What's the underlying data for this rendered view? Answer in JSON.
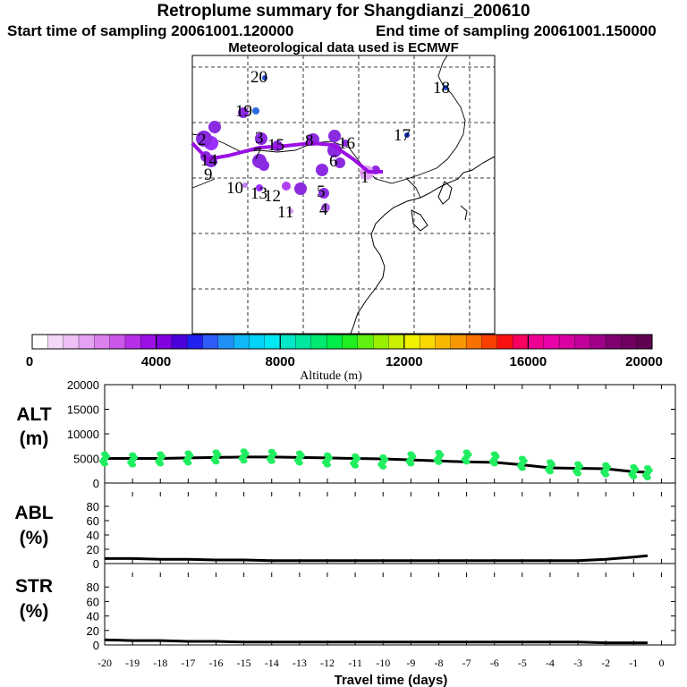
{
  "header": {
    "title": "Retroplume summary for Shangdianzi_200610",
    "start_label": "Start time of sampling 20061001.120000",
    "end_label": "End time of sampling 20061001.150000",
    "met_label": "Meteorological data used is ECMWF"
  },
  "map": {
    "point_labels": [
      {
        "text": "20",
        "color": "#1f4fd8"
      },
      {
        "text": "18",
        "color": "#1f4fd8"
      },
      {
        "text": "19",
        "color": "#2a6ae0"
      },
      {
        "text": "17",
        "color": "#1030c0"
      },
      {
        "text": "16",
        "color": "#8a2be2"
      },
      {
        "text": "15",
        "color": "#8a2be2"
      },
      {
        "text": "14",
        "color": "#8a2be2"
      },
      {
        "text": "9",
        "color": "#9b30ff"
      },
      {
        "text": "10",
        "color": "#c080f0"
      },
      {
        "text": "13",
        "color": "#9b30ff"
      },
      {
        "text": "12",
        "color": "#b040f0"
      },
      {
        "text": "11",
        "color": "#d090f0"
      },
      {
        "text": "8",
        "color": "#8a2be2"
      },
      {
        "text": "7",
        "color": "#8a2be2"
      },
      {
        "text": "6",
        "color": "#8a2be2"
      },
      {
        "text": "5",
        "color": "#8a2be2"
      },
      {
        "text": "4",
        "color": "#b060f0"
      },
      {
        "text": "3",
        "color": "#8a2be2"
      },
      {
        "text": "2",
        "color": "#8a2be2"
      },
      {
        "text": "1",
        "color": "#e0a0f0"
      }
    ]
  },
  "colorbar": {
    "xlabel": "Altitude (m)",
    "tick_labels": [
      "0",
      "4000",
      "8000",
      "12000",
      "16000",
      "20000"
    ],
    "colors": [
      "#ffffff",
      "#f4d8f8",
      "#eec0f6",
      "#e6a2f2",
      "#dc80ee",
      "#cc55ea",
      "#b62ee6",
      "#9a10e4",
      "#8000e0",
      "#4a00d8",
      "#2020f0",
      "#2e5cf8",
      "#2090f8",
      "#10b8f8",
      "#00d4f8",
      "#00e8f4",
      "#00e8c8",
      "#00e8a0",
      "#00ea70",
      "#00ec48",
      "#20ee20",
      "#60f010",
      "#98f000",
      "#c8f000",
      "#f0f000",
      "#f8d800",
      "#f8b800",
      "#f89800",
      "#f87000",
      "#f84000",
      "#f81010",
      "#f80060",
      "#f00090",
      "#e800a8",
      "#d800a0",
      "#c00098",
      "#a00088",
      "#800070",
      "#700060",
      "#600050"
    ]
  },
  "chart_data": [
    {
      "type": "line",
      "title": "ALT (m)",
      "ylabel": "ALT\n(m)",
      "ylim": [
        0,
        20000
      ],
      "yticks": [
        "0",
        "5000",
        "10000",
        "15000",
        "20000"
      ],
      "x": [
        -20,
        -19,
        -18,
        -17,
        -16,
        -15,
        -14,
        -13,
        -12,
        -11,
        -10,
        -9,
        -8,
        -7,
        -6,
        -5,
        -4,
        -3,
        -2,
        -1,
        -0.5
      ],
      "series": [
        {
          "name": "median altitude",
          "color": "#000000",
          "values": [
            5000,
            5000,
            5000,
            5100,
            5200,
            5300,
            5300,
            5200,
            5100,
            5000,
            4900,
            4700,
            4500,
            4300,
            4200,
            3700,
            3100,
            3000,
            2900,
            2300,
            2200
          ]
        },
        {
          "name": "particle altitudes",
          "color": "#20ee60",
          "values": [
            5200,
            5000,
            5200,
            5400,
            5600,
            5800,
            5700,
            5400,
            5000,
            4800,
            4600,
            5200,
            5500,
            5600,
            5200,
            4300,
            3600,
            3200,
            3000,
            2600,
            2400
          ]
        }
      ]
    },
    {
      "type": "line",
      "title": "ABL (%)",
      "ylabel": "ABL\n(%)",
      "ylim": [
        0,
        100
      ],
      "yticks": [
        "0",
        "20",
        "40",
        "60",
        "80"
      ],
      "x": [
        -20,
        -19,
        -18,
        -17,
        -16,
        -15,
        -14,
        -13,
        -12,
        -11,
        -10,
        -9,
        -8,
        -7,
        -6,
        -5,
        -4,
        -3,
        -2,
        -1,
        -0.5
      ],
      "series": [
        {
          "name": "ABL fraction",
          "color": "#000000",
          "values": [
            7,
            7,
            6,
            6,
            5,
            5,
            4,
            4,
            4,
            4,
            4,
            4,
            4,
            4,
            4,
            4,
            4,
            4,
            6,
            9,
            11
          ]
        }
      ]
    },
    {
      "type": "line",
      "title": "STR (%)",
      "ylabel": "STR\n(%)",
      "ylim": [
        0,
        100
      ],
      "yticks": [
        "0",
        "20",
        "40",
        "60",
        "80"
      ],
      "x": [
        -20,
        -19,
        -18,
        -17,
        -16,
        -15,
        -14,
        -13,
        -12,
        -11,
        -10,
        -9,
        -8,
        -7,
        -6,
        -5,
        -4,
        -3,
        -2,
        -1,
        -0.5
      ],
      "series": [
        {
          "name": "STR fraction",
          "color": "#000000",
          "values": [
            7,
            6,
            6,
            5,
            5,
            4,
            4,
            4,
            4,
            4,
            4,
            4,
            4,
            4,
            4,
            4,
            4,
            4,
            3,
            3,
            3
          ]
        }
      ]
    }
  ],
  "xaxis": {
    "xlabel": "Travel time (days)",
    "tick_labels": [
      "-20",
      "-19",
      "-18",
      "-17",
      "-16",
      "-15",
      "-14",
      "-13",
      "-12",
      "-11",
      "-10",
      "-9",
      "-8",
      "-7",
      "-6",
      "-5",
      "-4",
      "-3",
      "-2",
      "-1",
      "0"
    ]
  }
}
